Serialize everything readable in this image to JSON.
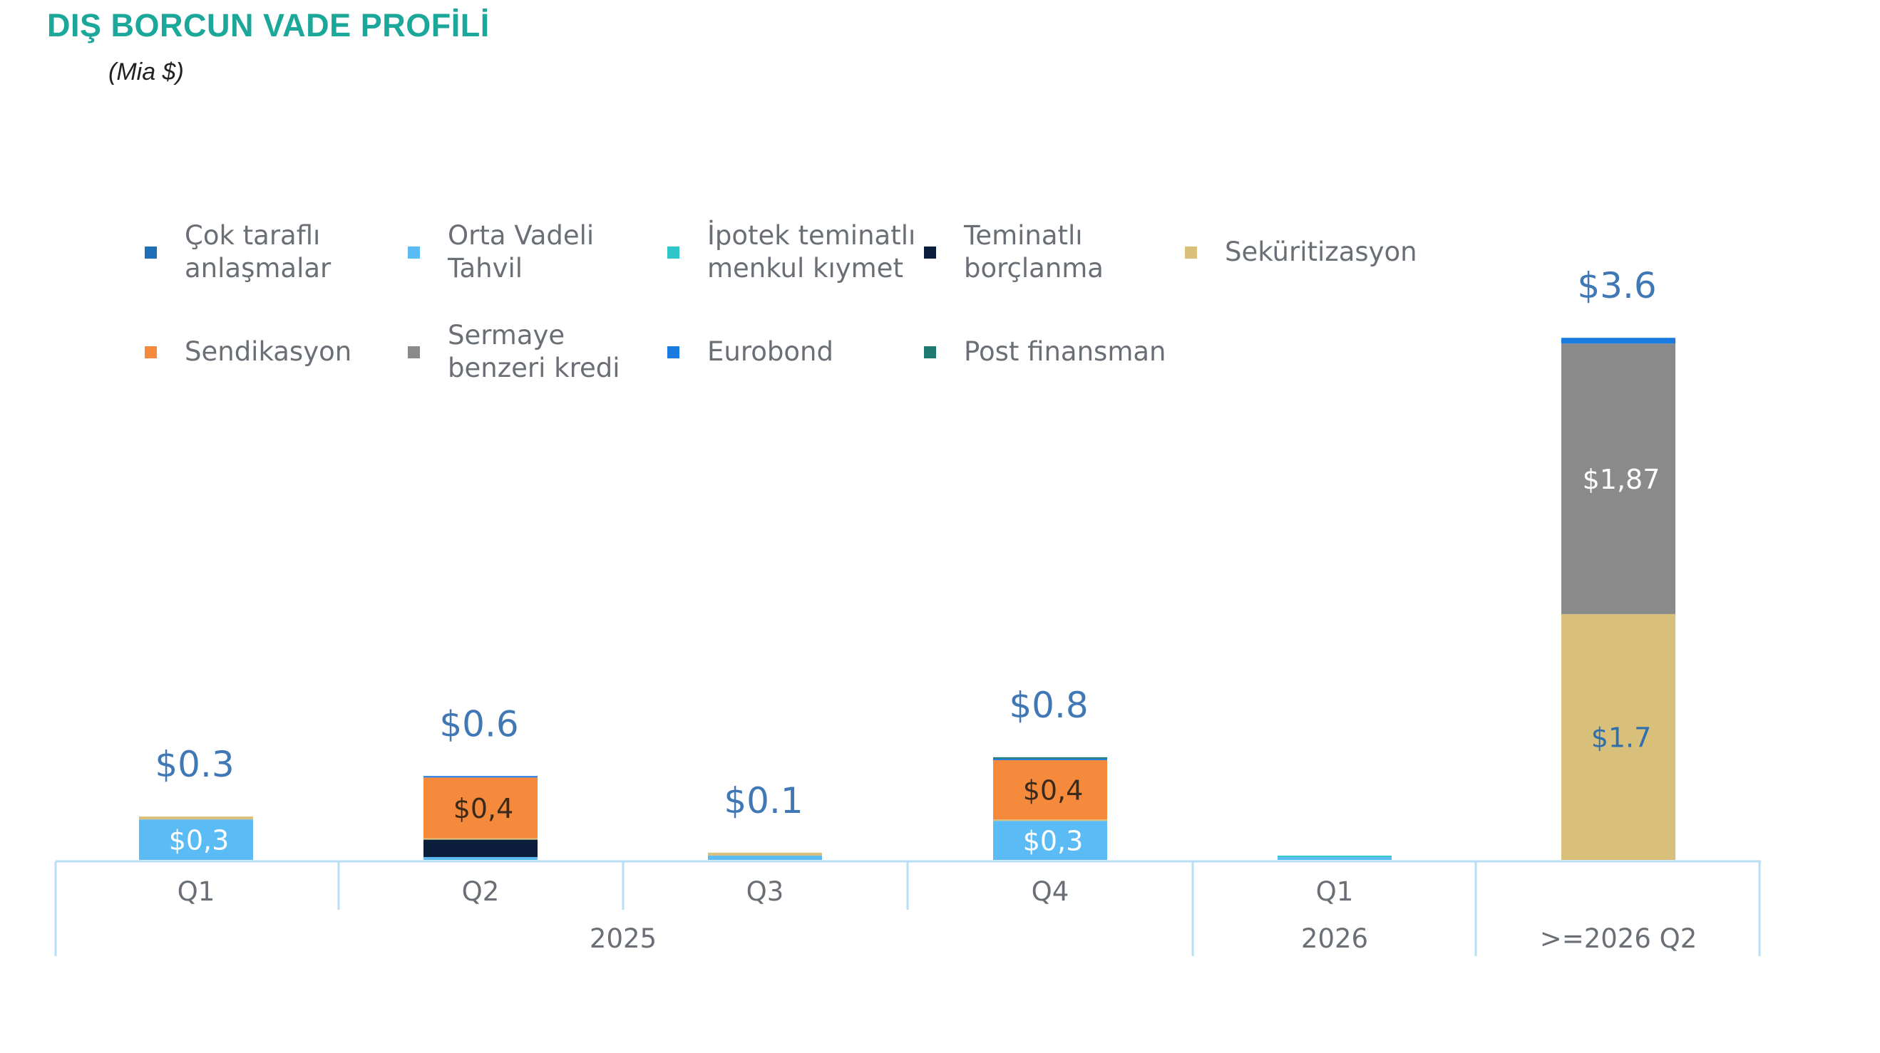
{
  "header": {
    "title": "DIŞ BORCUN VADE PROFİLİ",
    "subtitle": "(Mia $)"
  },
  "chart_data": {
    "type": "bar",
    "stacked": true,
    "categories": [
      "Q1",
      "Q2",
      "Q3",
      "Q4",
      "Q1",
      ">=2026 Q2"
    ],
    "year_groups": [
      {
        "label": "2025",
        "categories": [
          "Q1",
          "Q2",
          "Q3",
          "Q4"
        ]
      },
      {
        "label": "2026",
        "categories": [
          "Q1"
        ]
      },
      {
        "label": "",
        "categories": [
          ">=2026 Q2"
        ]
      }
    ],
    "totals": [
      "$0.3",
      "$0.6",
      "$0.1",
      "$0.8",
      "",
      "$3.6"
    ],
    "series": [
      {
        "name": "Çok taraflı anlaşmalar",
        "color": "#1f6fb8",
        "values": [
          0,
          0,
          0,
          0,
          0,
          0
        ],
        "labels": [
          "",
          "",
          "",
          "",
          "",
          ""
        ]
      },
      {
        "name": "Orta Vadeli Tahvil",
        "color": "#5bbcf5",
        "values": [
          0.28,
          0.02,
          0.03,
          0.27,
          0.02,
          0
        ],
        "labels": [
          "$0,3",
          "",
          "",
          "$0,3",
          "",
          ""
        ]
      },
      {
        "name": "İpotek teminatlı menkul kıymet",
        "color": "#2ec6c8",
        "values": [
          0,
          0,
          0,
          0,
          0.01,
          0
        ],
        "labels": [
          "",
          "",
          "",
          "",
          "",
          ""
        ]
      },
      {
        "name": "Teminatlı borçlanma",
        "color": "#0a1e3c",
        "values": [
          0,
          0.12,
          0,
          0,
          0,
          0
        ],
        "labels": [
          "",
          "",
          "",
          "",
          "",
          ""
        ]
      },
      {
        "name": "Seküritizasyon",
        "color": "#d8c07a",
        "values": [
          0.02,
          0.01,
          0.02,
          0.01,
          0,
          1.7
        ],
        "labels": [
          "",
          "",
          "",
          "",
          "",
          "$1.7"
        ]
      },
      {
        "name": "Sendikasyon",
        "color": "#f58a3d",
        "values": [
          0,
          0.42,
          0,
          0.41,
          0,
          0
        ],
        "labels": [
          "",
          "$0,4",
          "",
          "$0,4",
          "",
          ""
        ]
      },
      {
        "name": "Sermaye benzeri kredi",
        "color": "#8a8a8a",
        "values": [
          0,
          0,
          0,
          0,
          0,
          1.87
        ],
        "labels": [
          "",
          "",
          "",
          "",
          "",
          "$1,87"
        ]
      },
      {
        "name": "Eurobond",
        "color": "#1a7be0",
        "values": [
          0,
          0.01,
          0,
          0.01,
          0,
          0.04
        ],
        "labels": [
          "",
          "",
          "",
          "",
          "",
          ""
        ]
      },
      {
        "name": "Post finansman",
        "color": "#1e7a70",
        "values": [
          0,
          0,
          0,
          0.01,
          0,
          0
        ],
        "labels": [
          "",
          "",
          "",
          "",
          "",
          ""
        ]
      }
    ],
    "ylim": [
      0,
      3.7
    ],
    "grid": false,
    "legend_position": "top-left"
  }
}
